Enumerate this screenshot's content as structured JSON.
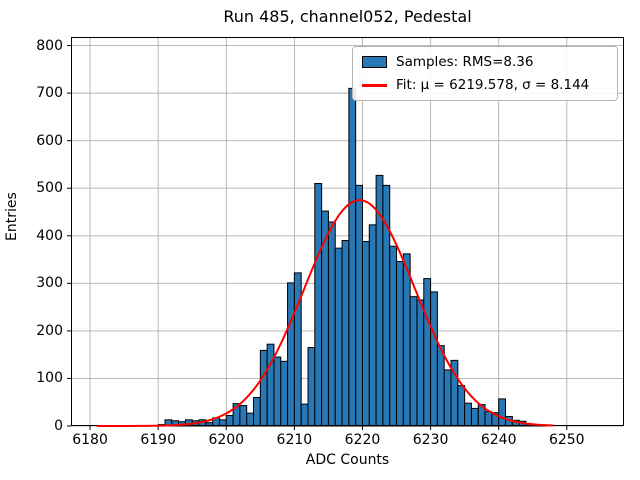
{
  "figure": {
    "background": "#ffffff",
    "title": "Run 485, channel052, Pedestal"
  },
  "chart_data": {
    "type": "bar",
    "subtype": "histogram-with-gaussian-fit",
    "title": "Run 485, channel052, Pedestal",
    "xlabel": "ADC Counts",
    "ylabel": "Entries",
    "xlim": [
      6177.2,
      6258.4
    ],
    "ylim": [
      0,
      818
    ],
    "xticks": [
      6180,
      6190,
      6200,
      6210,
      6220,
      6230,
      6240,
      6250
    ],
    "yticks": [
      0,
      100,
      200,
      300,
      400,
      500,
      600,
      700,
      800
    ],
    "grid": true,
    "grid_color": "#b0b0b0",
    "bar_color": "#2878b5",
    "bar_edge_color": "#000000",
    "bin_width": 1,
    "bins_left_edge": [
      6190,
      6191,
      6192,
      6193,
      6194,
      6195,
      6196,
      6197,
      6198,
      6199,
      6200,
      6201,
      6202,
      6203,
      6204,
      6205,
      6206,
      6207,
      6208,
      6209,
      6210,
      6211,
      6212,
      6213,
      6214,
      6215,
      6216,
      6217,
      6218,
      6219,
      6220,
      6221,
      6222,
      6223,
      6224,
      6225,
      6226,
      6227,
      6228,
      6229,
      6230,
      6231,
      6232,
      6233,
      6234,
      6235,
      6236,
      6237,
      6238,
      6239,
      6240,
      6241,
      6242,
      6243,
      6244,
      6245,
      6246
    ],
    "counts": [
      3,
      13,
      11,
      9,
      13,
      11,
      13,
      7,
      17,
      13,
      22,
      47,
      43,
      27,
      60,
      159,
      172,
      145,
      136,
      301,
      322,
      46,
      165,
      510,
      452,
      429,
      374,
      390,
      710,
      506,
      388,
      423,
      527,
      506,
      378,
      346,
      362,
      272,
      265,
      310,
      282,
      169,
      118,
      138,
      85,
      48,
      37,
      45,
      30,
      28,
      57,
      20,
      12,
      10,
      4,
      3,
      2
    ],
    "fit": {
      "color": "#ff0000",
      "mu": 6219.578,
      "sigma": 8.144,
      "amplitude": 475,
      "x_start": 6181,
      "x_end": 6248,
      "line_width": 2
    },
    "legend": {
      "position": "upper right",
      "entries": [
        {
          "swatch": "patch",
          "color": "#2878b5",
          "label": "Samples: RMS=8.36"
        },
        {
          "swatch": "line",
          "color": "#ff0000",
          "label": "Fit: μ = 6219.578, σ = 8.144"
        }
      ]
    }
  }
}
